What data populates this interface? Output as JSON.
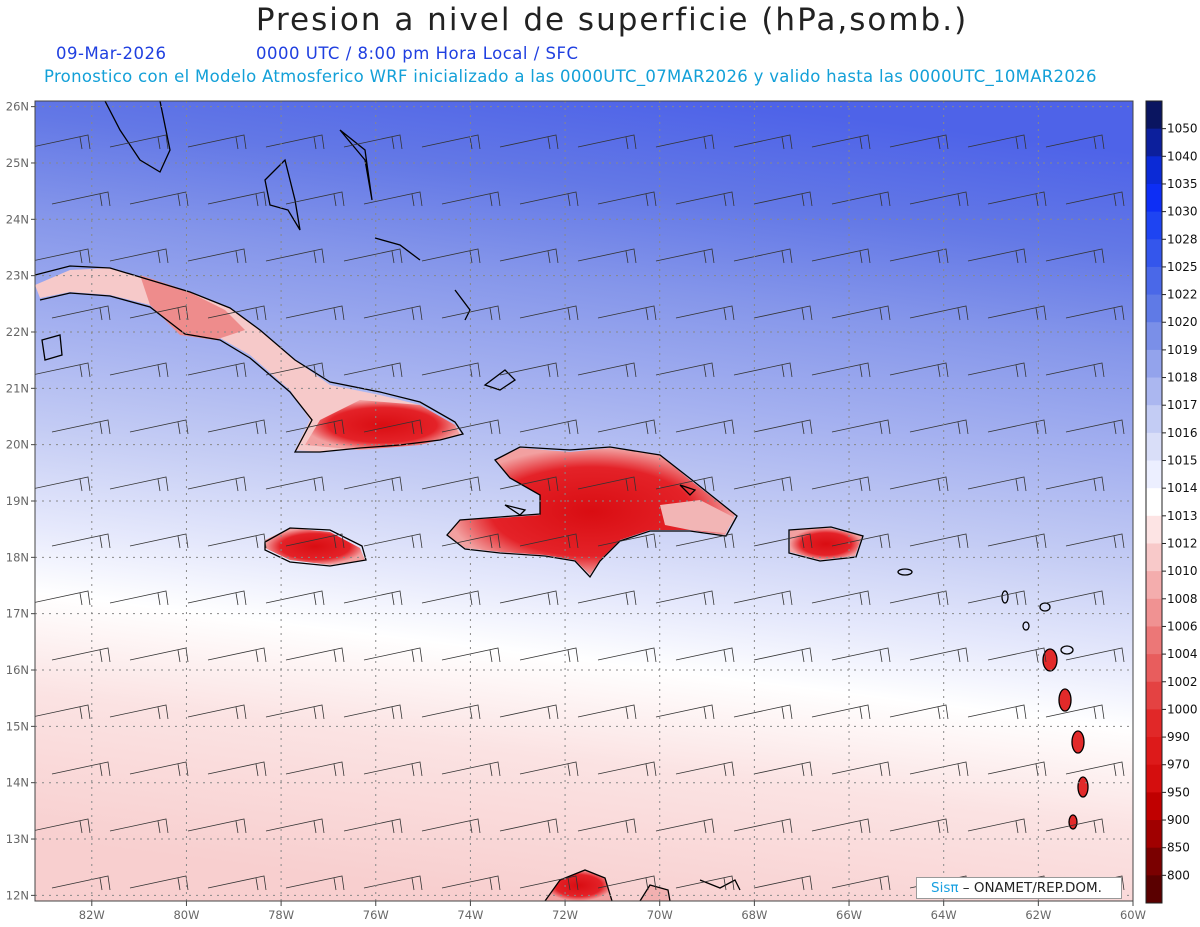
{
  "title": "Presion a nivel de superficie (hPa,somb.)",
  "date": "09-Mar-2026",
  "time_line": "0000 UTC / 8:00 pm Hora Local / SFC",
  "forecast_line": "Pronostico con el Modelo Atmosferico WRF inicializado a las 0000UTC_07MAR2026 y valido hasta las  0000UTC_10MAR2026",
  "credit": {
    "brand": "Sisπ",
    "text": "– ONAMET/REP.DOM."
  },
  "map": {
    "projection": "lat-lon",
    "lon_range": [
      -83.2,
      -60
    ],
    "lat_range": [
      11.9,
      26.1
    ],
    "lon_ticks": [
      {
        "value": -82,
        "label": "82W"
      },
      {
        "value": -80,
        "label": "80W"
      },
      {
        "value": -78,
        "label": "78W"
      },
      {
        "value": -76,
        "label": "76W"
      },
      {
        "value": -74,
        "label": "74W"
      },
      {
        "value": -72,
        "label": "72W"
      },
      {
        "value": -70,
        "label": "70W"
      },
      {
        "value": -68,
        "label": "68W"
      },
      {
        "value": -66,
        "label": "66W"
      },
      {
        "value": -64,
        "label": "64W"
      },
      {
        "value": -62,
        "label": "62W"
      },
      {
        "value": -60,
        "label": "60W"
      }
    ],
    "lat_ticks": [
      {
        "value": 26,
        "label": "26N"
      },
      {
        "value": 25,
        "label": "25N"
      },
      {
        "value": 24,
        "label": "24N"
      },
      {
        "value": 23,
        "label": "23N"
      },
      {
        "value": 22,
        "label": "22N"
      },
      {
        "value": 21,
        "label": "21N"
      },
      {
        "value": 20,
        "label": "20N"
      },
      {
        "value": 19,
        "label": "19N"
      },
      {
        "value": 18,
        "label": "18N"
      },
      {
        "value": 17,
        "label": "17N"
      },
      {
        "value": 16,
        "label": "16N"
      },
      {
        "value": 15,
        "label": "15N"
      },
      {
        "value": 14,
        "label": "14N"
      },
      {
        "value": 13,
        "label": "13N"
      },
      {
        "value": 12,
        "label": "12N"
      }
    ],
    "grid": true,
    "wind_barbs": true
  },
  "colorbar": {
    "levels": [
      "1050",
      "1040",
      "1035",
      "1030",
      "1028",
      "1025",
      "1022",
      "1020",
      "1019",
      "1018",
      "1017",
      "1016",
      "1015",
      "1014",
      "1013",
      "1012",
      "1010",
      "1008",
      "1006",
      "1004",
      "1002",
      "1000",
      "990",
      "970",
      "950",
      "900",
      "850",
      "800"
    ],
    "colors": [
      "#0a1560",
      "#0c1f9c",
      "#0b2ad6",
      "#0d2ef5",
      "#1e44f2",
      "#3456ec",
      "#4a68e8",
      "#5f7ae6",
      "#7a8fe8",
      "#93a3ec",
      "#abb7f0",
      "#c3ccf4",
      "#d9def8",
      "#ecefff",
      "#ffffff",
      "#fde4e4",
      "#f8c9c9",
      "#f4adad",
      "#f09292",
      "#ec7777",
      "#e85d5d",
      "#e44242",
      "#e12828",
      "#dd1a1a",
      "#d50e0e",
      "#c00000",
      "#a00000",
      "#7a0000",
      "#5a0000"
    ]
  }
}
